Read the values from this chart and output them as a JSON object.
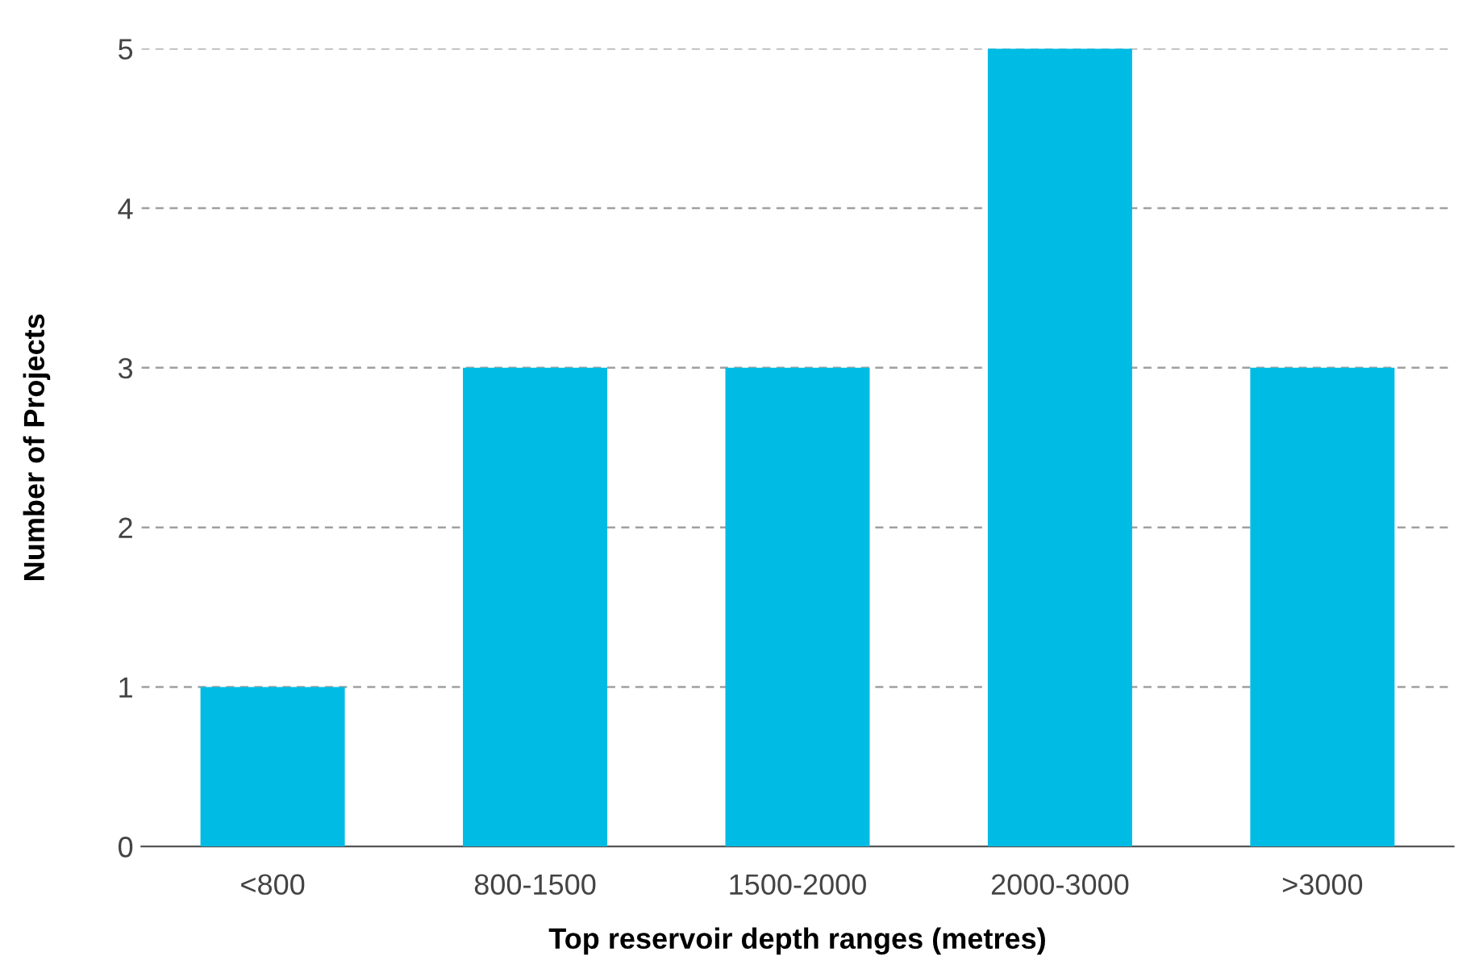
{
  "chart_data": {
    "type": "bar",
    "xlabel": "Top reservoir depth ranges (metres)",
    "ylabel": "Number of Projects",
    "categories": [
      "<800",
      "800-1500",
      "1500-2000",
      "2000-3000",
      ">3000"
    ],
    "values": [
      1,
      3,
      3,
      5,
      3
    ],
    "color": "#00bce4",
    "ylim": [
      0,
      5
    ],
    "yticks": [
      0,
      1,
      2,
      3,
      4,
      5
    ],
    "grid": "y"
  }
}
